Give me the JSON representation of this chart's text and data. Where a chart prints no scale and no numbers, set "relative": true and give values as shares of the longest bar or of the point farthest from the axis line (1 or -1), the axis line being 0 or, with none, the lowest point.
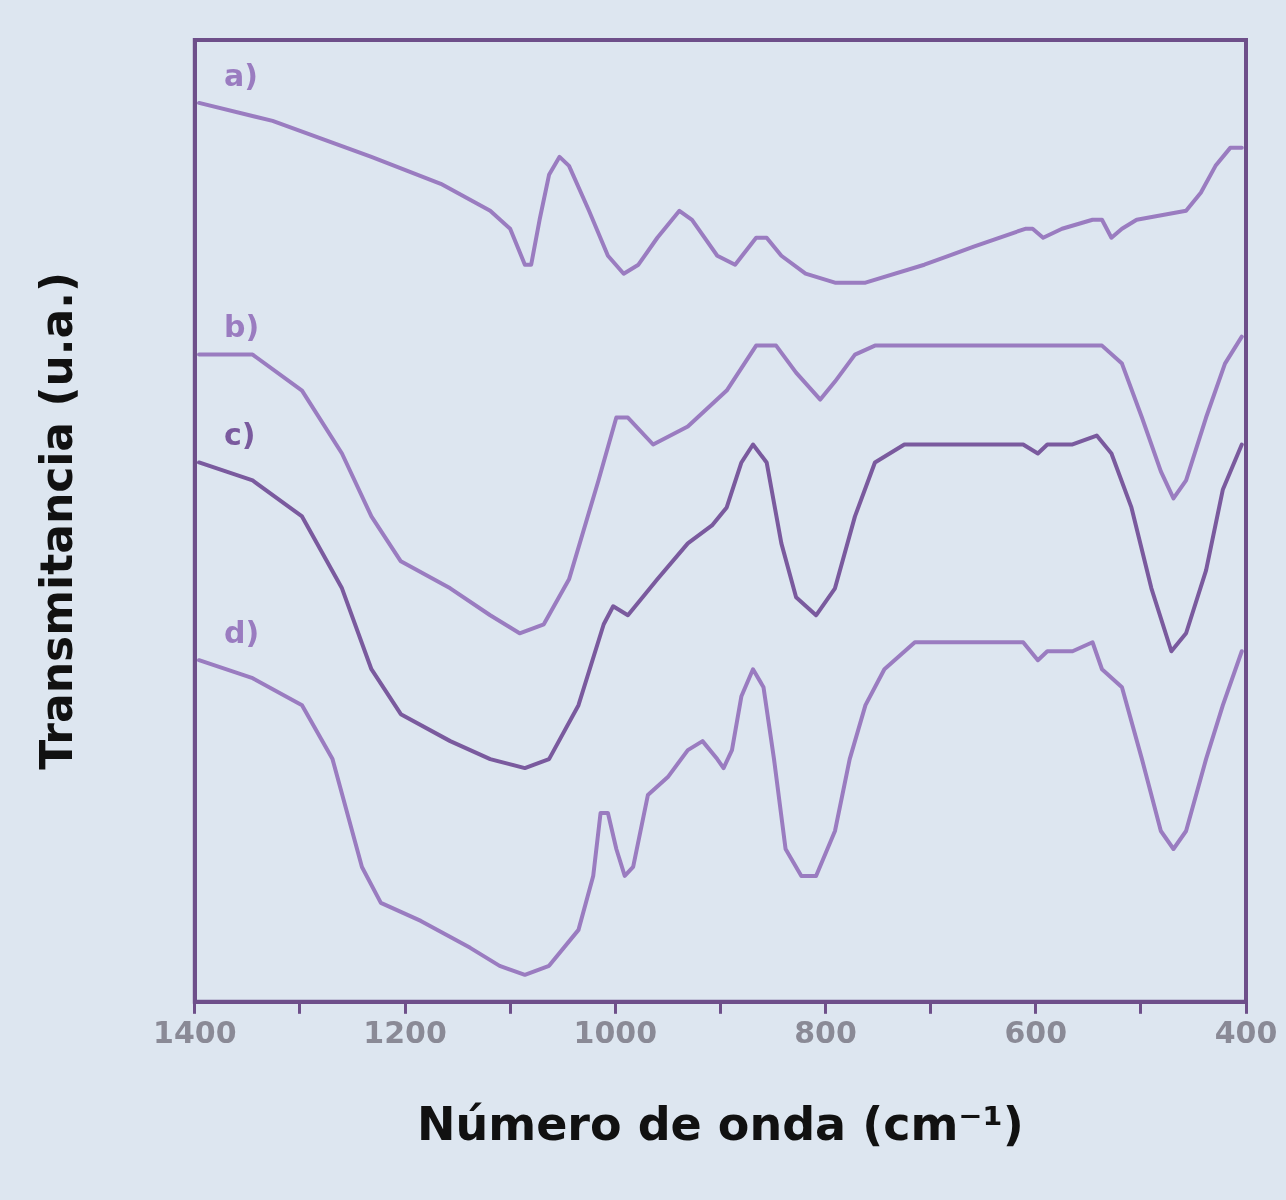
{
  "chart_data": {
    "type": "line",
    "xlabel": "Número de onda (cm⁻¹)",
    "ylabel": "Transmitancia (u.a.)",
    "relative": true,
    "xlim": [
      1400,
      400
    ],
    "xticks": [
      1400,
      {
        "value": 1300,
        "label": null
      },
      1200,
      {
        "value": 1100,
        "label": null
      },
      1000,
      {
        "value": 900,
        "label": null
      },
      800,
      {
        "value": 700,
        "label": null
      },
      600,
      {
        "value": 500,
        "label": null
      },
      400
    ],
    "grid": false,
    "legend": false,
    "marker": "none",
    "line_style": "solid",
    "series": [
      {
        "name": "a)",
        "color": "#9a7cc0",
        "x": [
          1396,
          1326,
          1232,
          1166,
          1119,
          1100,
          1086,
          1080,
          1072,
          1063,
          1053,
          1044,
          1025,
          1007,
          992,
          978,
          960,
          939,
          927,
          903,
          886,
          866,
          856,
          842,
          819,
          791,
          762,
          706,
          659,
          610,
          603,
          593,
          575,
          546,
          537,
          528,
          518,
          504,
          457,
          443,
          429,
          415,
          404
        ],
        "values": [
          1.0,
          0.98,
          0.94,
          0.91,
          0.88,
          0.86,
          0.82,
          0.82,
          0.87,
          0.92,
          0.94,
          0.93,
          0.88,
          0.83,
          0.81,
          0.82,
          0.85,
          0.88,
          0.87,
          0.83,
          0.82,
          0.85,
          0.85,
          0.83,
          0.81,
          0.8,
          0.8,
          0.82,
          0.84,
          0.86,
          0.86,
          0.85,
          0.86,
          0.87,
          0.87,
          0.85,
          0.86,
          0.87,
          0.88,
          0.9,
          0.93,
          0.95,
          0.95
        ]
      },
      {
        "name": "b)",
        "color": "#9a7cc0",
        "x": [
          1396,
          1345,
          1298,
          1260,
          1232,
          1204,
          1157,
          1119,
          1091,
          1068,
          1044,
          1016,
          999,
          988,
          964,
          931,
          894,
          866,
          847,
          828,
          805,
          791,
          772,
          753,
          706,
          612,
          584,
          565,
          537,
          518,
          499,
          481,
          469,
          457,
          438,
          420,
          404
        ],
        "values": [
          0.72,
          0.72,
          0.68,
          0.61,
          0.54,
          0.49,
          0.46,
          0.43,
          0.41,
          0.42,
          0.47,
          0.58,
          0.65,
          0.65,
          0.62,
          0.64,
          0.68,
          0.73,
          0.73,
          0.7,
          0.67,
          0.69,
          0.72,
          0.73,
          0.73,
          0.73,
          0.73,
          0.73,
          0.73,
          0.71,
          0.65,
          0.59,
          0.56,
          0.58,
          0.65,
          0.71,
          0.74
        ]
      },
      {
        "name": "c)",
        "color": "#7a5a9e",
        "x": [
          1396,
          1345,
          1298,
          1260,
          1232,
          1204,
          1157,
          1119,
          1086,
          1063,
          1035,
          1011,
          1002,
          988,
          960,
          931,
          908,
          894,
          880,
          869,
          856,
          842,
          828,
          809,
          791,
          772,
          753,
          725,
          669,
          612,
          598,
          589,
          565,
          542,
          528,
          509,
          490,
          471,
          457,
          438,
          422,
          404
        ],
        "values": [
          0.6,
          0.58,
          0.54,
          0.46,
          0.37,
          0.32,
          0.29,
          0.27,
          0.26,
          0.27,
          0.33,
          0.42,
          0.44,
          0.43,
          0.47,
          0.51,
          0.53,
          0.55,
          0.6,
          0.62,
          0.6,
          0.51,
          0.45,
          0.43,
          0.46,
          0.54,
          0.6,
          0.62,
          0.62,
          0.62,
          0.61,
          0.62,
          0.62,
          0.63,
          0.61,
          0.55,
          0.46,
          0.39,
          0.41,
          0.48,
          0.57,
          0.62
        ]
      },
      {
        "name": "d)",
        "color": "#9a7cc0",
        "x": [
          1396,
          1345,
          1298,
          1269,
          1241,
          1223,
          1185,
          1138,
          1110,
          1086,
          1063,
          1035,
          1021,
          1014,
          1007,
          999,
          991,
          983,
          969,
          950,
          931,
          917,
          903,
          897,
          889,
          880,
          869,
          859,
          849,
          838,
          823,
          809,
          791,
          777,
          762,
          744,
          715,
          669,
          612,
          598,
          589,
          565,
          546,
          537,
          518,
          499,
          481,
          469,
          457,
          438,
          422,
          404
        ],
        "values": [
          0.38,
          0.36,
          0.33,
          0.27,
          0.15,
          0.11,
          0.09,
          0.06,
          0.04,
          0.03,
          0.04,
          0.08,
          0.14,
          0.21,
          0.21,
          0.17,
          0.14,
          0.15,
          0.23,
          0.25,
          0.28,
          0.29,
          0.27,
          0.26,
          0.28,
          0.34,
          0.37,
          0.35,
          0.27,
          0.17,
          0.14,
          0.14,
          0.19,
          0.27,
          0.33,
          0.37,
          0.4,
          0.4,
          0.4,
          0.38,
          0.39,
          0.39,
          0.4,
          0.37,
          0.35,
          0.27,
          0.19,
          0.17,
          0.19,
          0.27,
          0.33,
          0.39
        ]
      }
    ]
  }
}
